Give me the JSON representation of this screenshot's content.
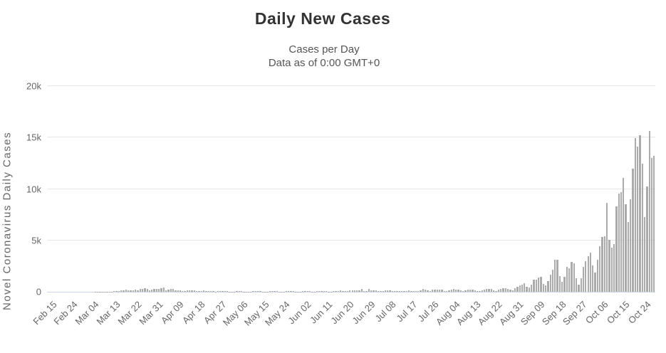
{
  "chart": {
    "title": "Daily New Cases",
    "subtitle_line1": "Cases per Day",
    "subtitle_line2": "Data as of 0:00 GMT+0",
    "y_axis_title": "Novel Coronavirus Daily Cases"
  },
  "colors": {
    "background": "#ffffff",
    "title": "#333333",
    "subtitle": "#555555",
    "axis_labels": "#666666",
    "grid": "#e6e6e6",
    "axis_line": "#ccd6eb",
    "bar": "#ababab"
  },
  "chart_data": {
    "type": "bar",
    "title": "Daily New Cases",
    "subtitle": [
      "Cases per Day",
      "Data as of 0:00 GMT+0"
    ],
    "xlabel": "",
    "ylabel": "Novel Coronavirus Daily Cases",
    "ylim": [
      0,
      20000
    ],
    "grid": true,
    "legend_position": "none",
    "y_ticks": [
      {
        "value": 0,
        "label": "0"
      },
      {
        "value": 5000,
        "label": "5k"
      },
      {
        "value": 10000,
        "label": "10k"
      },
      {
        "value": 15000,
        "label": "15k"
      },
      {
        "value": 20000,
        "label": "20k"
      }
    ],
    "x_tick_interval_days": 9,
    "x_tick_labels": [
      "Feb 15",
      "Feb 24",
      "Mar 04",
      "Mar 13",
      "Mar 22",
      "Mar 31",
      "Apr 09",
      "Apr 18",
      "Apr 27",
      "May 06",
      "May 15",
      "May 24",
      "Jun 02",
      "Jun 11",
      "Jun 20",
      "Jun 29",
      "Jul 08",
      "Jul 17",
      "Jul 26",
      "Aug 04",
      "Aug 13",
      "Aug 22",
      "Aug 31",
      "Sep 09",
      "Sep 18",
      "Sep 27",
      "Oct 06",
      "Oct 15",
      "Oct 24"
    ],
    "values": [
      0,
      0,
      0,
      0,
      0,
      0,
      0,
      0,
      0,
      0,
      0,
      0,
      0,
      0,
      0,
      3,
      0,
      2,
      0,
      3,
      11,
      7,
      6,
      6,
      25,
      30,
      22,
      21,
      73,
      64,
      62,
      112,
      134,
      191,
      157,
      143,
      158,
      184,
      158,
      291,
      259,
      373,
      262,
      160,
      184,
      307,
      282,
      250,
      373,
      382,
      115,
      195,
      295,
      285,
      112,
      163,
      166,
      92,
      68,
      126,
      172,
      162,
      107,
      53,
      37,
      82,
      123,
      93,
      102,
      76,
      50,
      26,
      41,
      78,
      58,
      69,
      55,
      30,
      16,
      34,
      76,
      60,
      57,
      27,
      15,
      13,
      35,
      53,
      47,
      52,
      46,
      33,
      11,
      34,
      52,
      40,
      56,
      48,
      32,
      12,
      33,
      46,
      44,
      60,
      50,
      23,
      17,
      23,
      40,
      69,
      60,
      49,
      29,
      16,
      38,
      58,
      66,
      39,
      53,
      31,
      17,
      42,
      60,
      74,
      115,
      102,
      55,
      39,
      116,
      123,
      138,
      155,
      157,
      260,
      75,
      58,
      305,
      169,
      168,
      121,
      75,
      46,
      72,
      115,
      106,
      121,
      92,
      48,
      38,
      60,
      88,
      93,
      95,
      109,
      74,
      41,
      65,
      103,
      131,
      247,
      207,
      141,
      98,
      192,
      215,
      207,
      231,
      178,
      102,
      60,
      117,
      208,
      257,
      241,
      216,
      116,
      64,
      147,
      212,
      215,
      208,
      172,
      100,
      61,
      142,
      217,
      249,
      264,
      252,
      148,
      92,
      224,
      298,
      318,
      323,
      310,
      198,
      117,
      374,
      499,
      650,
      680,
      798,
      503,
      408,
      725,
      1164,
      1161,
      1382,
      1447,
      794,
      590,
      1038,
      1677,
      2139,
      3130,
      3102,
      1541,
      985,
      1476,
      2394,
      2309,
      2913,
      2773,
      1305,
      723,
      1287,
      2396,
      2953,
      3493,
      3792,
      2552,
      1844,
      3118,
      4457,
      5335,
      5394,
      8618,
      5059,
      4310,
      4628,
      8325,
      9544,
      9721,
      11105,
      8538,
      6790,
      9029,
      11984,
      14968,
      14151,
      15252,
      12474,
      7301,
      10273,
      15663,
      12977,
      13203
    ]
  }
}
